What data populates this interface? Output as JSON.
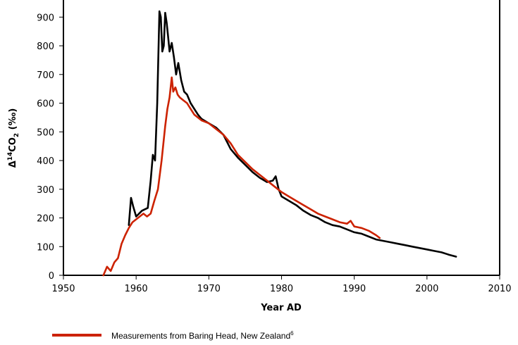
{
  "chart_data": {
    "type": "line",
    "title": "",
    "xlabel": "Year AD",
    "ylabel": "Δ14CO2 (‰)",
    "xlim": [
      1950,
      2010
    ],
    "ylim": [
      0,
      940
    ],
    "x_ticks": [
      "1950",
      "1960",
      "1970",
      "1980",
      "1990",
      "2000",
      "2010"
    ],
    "y_ticks": [
      "0",
      "100",
      "200",
      "300",
      "400",
      "500",
      "600",
      "700",
      "800",
      "900"
    ],
    "grid": false,
    "series": [
      {
        "name": "",
        "color": "#000000",
        "x": [
          1959.0,
          1959.3,
          1959.6,
          1960.0,
          1960.4,
          1960.8,
          1961.2,
          1961.6,
          1962.0,
          1962.3,
          1962.6,
          1962.9,
          1963.2,
          1963.4,
          1963.6,
          1963.8,
          1964.0,
          1964.2,
          1964.4,
          1964.6,
          1964.9,
          1965.2,
          1965.5,
          1965.8,
          1966.2,
          1966.6,
          1967.0,
          1967.5,
          1968.0,
          1968.5,
          1969.0,
          1970.0,
          1971.0,
          1972.0,
          1973.0,
          1974.0,
          1975.0,
          1976.0,
          1977.0,
          1978.0,
          1978.8,
          1979.2,
          1979.6,
          1980.0,
          1981.0,
          1982.0,
          1983.0,
          1984.0,
          1985.0,
          1986.0,
          1987.0,
          1988.0,
          1989.0,
          1990.0,
          1991.0,
          1992.0,
          1993.0,
          1994.0,
          1995.0,
          1996.0,
          1997.0,
          1998.0,
          1999.0,
          2000.0,
          2001.0,
          2002.0,
          2003.0,
          2004.0
        ],
        "values": [
          175,
          270,
          240,
          205,
          215,
          225,
          230,
          235,
          330,
          420,
          400,
          600,
          920,
          900,
          780,
          800,
          915,
          880,
          830,
          780,
          810,
          760,
          700,
          740,
          680,
          640,
          630,
          600,
          580,
          560,
          545,
          530,
          515,
          490,
          440,
          410,
          385,
          360,
          340,
          325,
          330,
          345,
          300,
          275,
          260,
          245,
          225,
          210,
          200,
          185,
          175,
          170,
          160,
          150,
          145,
          135,
          125,
          120,
          115,
          110,
          105,
          100,
          95,
          90,
          85,
          80,
          72,
          65
        ]
      },
      {
        "name": "Measurements from Baring Head, New Zealand",
        "color": "#cc2200",
        "x": [
          1955.5,
          1956.0,
          1956.5,
          1957.0,
          1957.5,
          1958.0,
          1958.5,
          1959.0,
          1959.5,
          1960.0,
          1960.5,
          1961.0,
          1961.5,
          1962.0,
          1962.5,
          1963.0,
          1963.5,
          1964.0,
          1964.3,
          1964.6,
          1964.9,
          1965.1,
          1965.4,
          1965.7,
          1966.0,
          1966.5,
          1967.0,
          1967.5,
          1968.0,
          1969.0,
          1970.0,
          1971.0,
          1972.0,
          1973.0,
          1974.0,
          1975.0,
          1976.0,
          1977.0,
          1978.0,
          1979.0,
          1980.0,
          1981.0,
          1982.0,
          1983.0,
          1984.0,
          1985.0,
          1986.0,
          1987.0,
          1988.0,
          1989.0,
          1989.5,
          1990.0,
          1991.0,
          1992.0,
          1993.0,
          1993.5
        ],
        "values": [
          0,
          30,
          15,
          45,
          60,
          110,
          140,
          165,
          185,
          195,
          205,
          215,
          205,
          215,
          260,
          300,
          400,
          520,
          580,
          620,
          690,
          640,
          655,
          630,
          620,
          610,
          600,
          580,
          560,
          540,
          530,
          510,
          490,
          460,
          420,
          395,
          370,
          350,
          330,
          310,
          290,
          275,
          260,
          245,
          230,
          215,
          205,
          195,
          185,
          180,
          190,
          170,
          165,
          155,
          140,
          130
        ]
      }
    ]
  },
  "legend": {
    "label": "Measurements from Baring Head, New Zealand",
    "superscript": "6",
    "color": "#cc2200"
  }
}
